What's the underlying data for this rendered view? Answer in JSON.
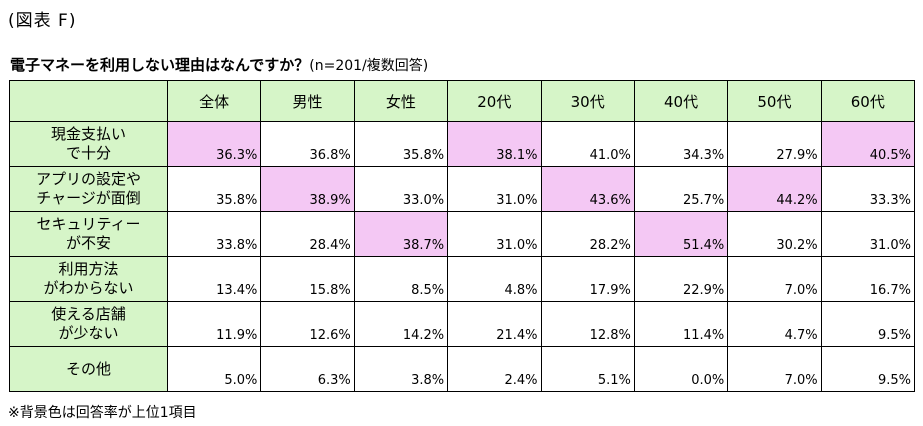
{
  "figure_label": "(図表 F)",
  "title": "電子マネーを利用しない理由はなんですか？",
  "sample_note": "(n=201/複数回答)",
  "columns": [
    "全体",
    "男性",
    "女性",
    "20代",
    "30代",
    "40代",
    "50代",
    "60代"
  ],
  "rows": [
    {
      "label_line1": "現金支払い",
      "label_line2": "で十分",
      "values": [
        "36.3%",
        "36.8%",
        "35.8%",
        "38.1%",
        "41.0%",
        "34.3%",
        "27.9%",
        "40.5%"
      ],
      "highlight": [
        true,
        false,
        false,
        true,
        false,
        false,
        false,
        true
      ]
    },
    {
      "label_line1": "アプリの設定や",
      "label_line2": "チャージが面倒",
      "values": [
        "35.8%",
        "38.9%",
        "33.0%",
        "31.0%",
        "43.6%",
        "25.7%",
        "44.2%",
        "33.3%"
      ],
      "highlight": [
        false,
        true,
        false,
        false,
        true,
        false,
        true,
        false
      ]
    },
    {
      "label_line1": "セキュリティー",
      "label_line2": "が不安",
      "values": [
        "33.8%",
        "28.4%",
        "38.7%",
        "31.0%",
        "28.2%",
        "51.4%",
        "30.2%",
        "31.0%"
      ],
      "highlight": [
        false,
        false,
        true,
        false,
        false,
        true,
        false,
        false
      ]
    },
    {
      "label_line1": "利用方法",
      "label_line2": "がわからない",
      "values": [
        "13.4%",
        "15.8%",
        "8.5%",
        "4.8%",
        "17.9%",
        "22.9%",
        "7.0%",
        "16.7%"
      ],
      "highlight": [
        false,
        false,
        false,
        false,
        false,
        false,
        false,
        false
      ]
    },
    {
      "label_line1": "使える店舗",
      "label_line2": "が少ない",
      "values": [
        "11.9%",
        "12.6%",
        "14.2%",
        "21.4%",
        "12.8%",
        "11.4%",
        "4.7%",
        "9.5%"
      ],
      "highlight": [
        false,
        false,
        false,
        false,
        false,
        false,
        false,
        false
      ]
    },
    {
      "label_line1": "その他",
      "label_line2": "",
      "values": [
        "5.0%",
        "6.3%",
        "3.8%",
        "2.4%",
        "5.1%",
        "0.0%",
        "7.0%",
        "9.5%"
      ],
      "highlight": [
        false,
        false,
        false,
        false,
        false,
        false,
        false,
        false
      ]
    }
  ],
  "note": "※背景色は回答率が上位1項目",
  "colors": {
    "header_bg": "#d6f5c8",
    "highlight_bg": "#f4c8f4",
    "border": "#000000"
  }
}
